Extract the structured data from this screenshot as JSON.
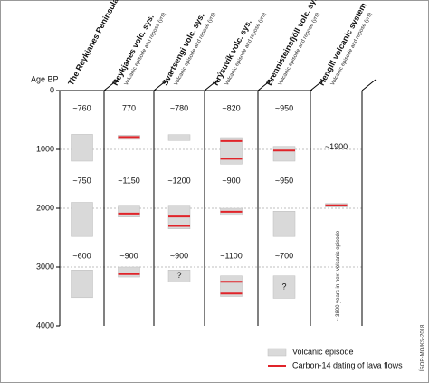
{
  "chart_data": {
    "type": "timeline",
    "ylabel": "Age BP",
    "ylim": [
      0,
      4000
    ],
    "yticks": [
      0,
      1000,
      2000,
      3000,
      4000
    ],
    "grid": true,
    "episode_color": "#d9d9d9",
    "date_color": "#e0242a",
    "columns": [
      {
        "name": "The Reykjanes Peninsula",
        "episodes": [
          {
            "start": 745,
            "end": 1200
          },
          {
            "start": 1900,
            "end": 2480
          },
          {
            "start": 3050,
            "end": 3520
          }
        ],
        "dates": [],
        "labels": [
          "~760",
          "~750",
          "~600"
        ]
      },
      {
        "name": "Reykjanes volc. sys.",
        "subtitle": "Volcanic episode and repose (yrs)",
        "episodes": [
          {
            "start": 760,
            "end": 830
          },
          {
            "start": 1950,
            "end": 2150
          },
          {
            "start": 3000,
            "end": 3170
          }
        ],
        "dates": [
          790,
          2090,
          3120
        ],
        "labels": [
          "770",
          "~1150",
          "~900"
        ]
      },
      {
        "name": "Svartsengi volc. sys.",
        "subtitle": "Volcanic episode and repose (yrs)",
        "episodes": [
          {
            "start": 750,
            "end": 850
          },
          {
            "start": 1950,
            "end": 2350
          },
          {
            "start": 3050,
            "end": 3250,
            "label": "?"
          }
        ],
        "dates": [
          2140,
          2300
        ],
        "labels": [
          "~780",
          "~1200",
          "~900"
        ]
      },
      {
        "name": "Krýsuvík volc. sys.",
        "subtitle": "Volcanic episode and repose (yrs)",
        "episodes": [
          {
            "start": 800,
            "end": 1250
          },
          {
            "start": 2000,
            "end": 2120
          },
          {
            "start": 3150,
            "end": 3500
          }
        ],
        "dates": [
          860,
          1160,
          2060,
          3250,
          3450
        ],
        "labels": [
          "~820",
          "~900",
          "~1100"
        ]
      },
      {
        "name": "Brennisteinsfjöll volc. sys.",
        "subtitle": "Volcanic episode and repose (yrs)",
        "episodes": [
          {
            "start": 950,
            "end": 1200
          },
          {
            "start": 2050,
            "end": 2480
          },
          {
            "start": 3150,
            "end": 3530,
            "label": "?"
          }
        ],
        "dates": [
          1020
        ],
        "labels": [
          "~950",
          "~950",
          "~700"
        ]
      },
      {
        "name": "Hengill volcanic system",
        "subtitle": "Volcanic episode and repose (yrs)",
        "episodes": [
          {
            "start": 1920,
            "end": 1980
          }
        ],
        "dates": [
          1950
        ],
        "labels": [
          "~1900"
        ],
        "annotation": "~ 3800 years in next volcanic episode"
      }
    ],
    "legend": {
      "episode": "Volcanic episode",
      "date": "Carbon-14 dating of lava flows"
    },
    "credit": "ÍSOR-MO/KS-2018"
  }
}
